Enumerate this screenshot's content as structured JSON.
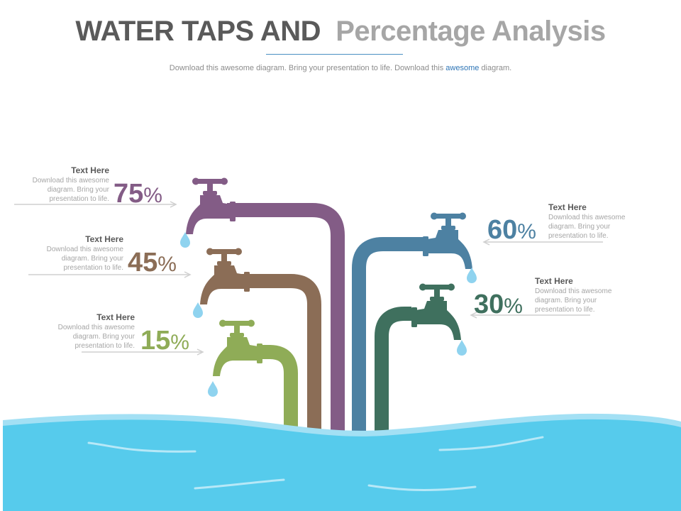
{
  "header": {
    "title_dark": "WATER TAPS AND",
    "title_light": "Percentage Analysis",
    "subtitle_pre": "Download this awesome diagram. Bring your presentation to life. Download this",
    "subtitle_highlight": "awesome",
    "subtitle_post": "diagram."
  },
  "colors": {
    "purple": "#835c86",
    "brown": "#8b6d56",
    "green": "#8fac57",
    "blue": "#4d81a2",
    "teal": "#3f705e",
    "water": "#56cbec",
    "drop": "#8fd3ef"
  },
  "taps": [
    {
      "value": "75",
      "sign": "%",
      "heading": "Text Here",
      "body": [
        "Download this awesome",
        "diagram. Bring your",
        "presentation to life."
      ]
    },
    {
      "value": "45",
      "sign": "%",
      "heading": "Text Here",
      "body": [
        "Download this awesome",
        "diagram. Bring your",
        "presentation to life."
      ]
    },
    {
      "value": "15",
      "sign": "%",
      "heading": "Text Here",
      "body": [
        "Download this awesome",
        "diagram. Bring your",
        "presentation to life."
      ]
    },
    {
      "value": "60",
      "sign": "%",
      "heading": "Text Here",
      "body": [
        "Download this awesome",
        "diagram. Bring your",
        "presentation to life."
      ]
    },
    {
      "value": "30",
      "sign": "%",
      "heading": "Text Here",
      "body": [
        "Download this awesome",
        "diagram. Bring your",
        "presentation to life."
      ]
    }
  ]
}
